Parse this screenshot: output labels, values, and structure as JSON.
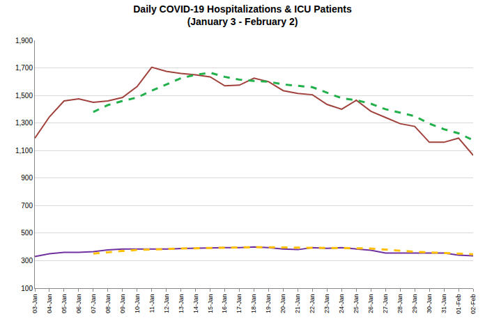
{
  "chart_data": {
    "type": "line",
    "title": "Daily COVID-19 Hospitalizations & ICU Patients",
    "subtitle": "(January 3 - February 2)",
    "categories": [
      "03-Jan",
      "04-Jan",
      "05-Jan",
      "06-Jan",
      "07-Jan",
      "08-Jan",
      "09-Jan",
      "10-Jan",
      "11-Jan",
      "12-Jan",
      "13-Jan",
      "14-Jan",
      "15-Jan",
      "16-Jan",
      "17-Jan",
      "18-Jan",
      "19-Jan",
      "20-Jan",
      "21-Jan",
      "22-Jan",
      "23-Jan",
      "24-Jan",
      "25-Jan",
      "26-Jan",
      "27-Jan",
      "28-Jan",
      "29-Jan",
      "30-Jan",
      "31-Jan",
      "01-Feb",
      "02-Feb"
    ],
    "series": [
      {
        "color": "#A0413C",
        "line_style": "solid",
        "values": [
          1190,
          1345,
          1460,
          1475,
          1450,
          1460,
          1485,
          1565,
          1705,
          1675,
          1660,
          1650,
          1635,
          1570,
          1575,
          1625,
          1600,
          1535,
          1515,
          1505,
          1435,
          1400,
          1465,
          1385,
          1340,
          1295,
          1275,
          1160,
          1160,
          1190,
          1065
        ]
      },
      {
        "color": "#22B04B",
        "line_style": "dashed",
        "values": [
          null,
          null,
          null,
          null,
          1380,
          1430,
          1460,
          1485,
          1535,
          1580,
          1625,
          1650,
          1665,
          1635,
          1615,
          1605,
          1600,
          1580,
          1570,
          1560,
          1520,
          1480,
          1465,
          1440,
          1400,
          1375,
          1350,
          1295,
          1255,
          1225,
          1175
        ]
      },
      {
        "color": "#7030A0",
        "line_style": "solid",
        "values": [
          330,
          350,
          360,
          360,
          365,
          378,
          385,
          385,
          382,
          385,
          388,
          390,
          395,
          395,
          395,
          400,
          395,
          385,
          380,
          395,
          390,
          395,
          385,
          375,
          355,
          355,
          352,
          352,
          355,
          340,
          335
        ]
      },
      {
        "color": "#FFC000",
        "line_style": "dashed",
        "values": [
          null,
          null,
          null,
          null,
          352,
          362,
          370,
          378,
          382,
          385,
          388,
          390,
          392,
          395,
          397,
          398,
          397,
          395,
          393,
          394,
          392,
          392,
          390,
          388,
          380,
          372,
          365,
          360,
          355,
          352,
          347
        ]
      }
    ],
    "ylim": [
      100,
      1900
    ],
    "yticks": [
      100,
      300,
      500,
      700,
      900,
      {
        "value": 1100,
        "label": "1,100"
      },
      {
        "value": 1300,
        "label": "1,300"
      },
      {
        "value": 1500,
        "label": "1,500"
      },
      {
        "value": 1700,
        "label": "1,700"
      },
      {
        "value": 1900,
        "label": "1,900"
      }
    ],
    "grid": true
  }
}
